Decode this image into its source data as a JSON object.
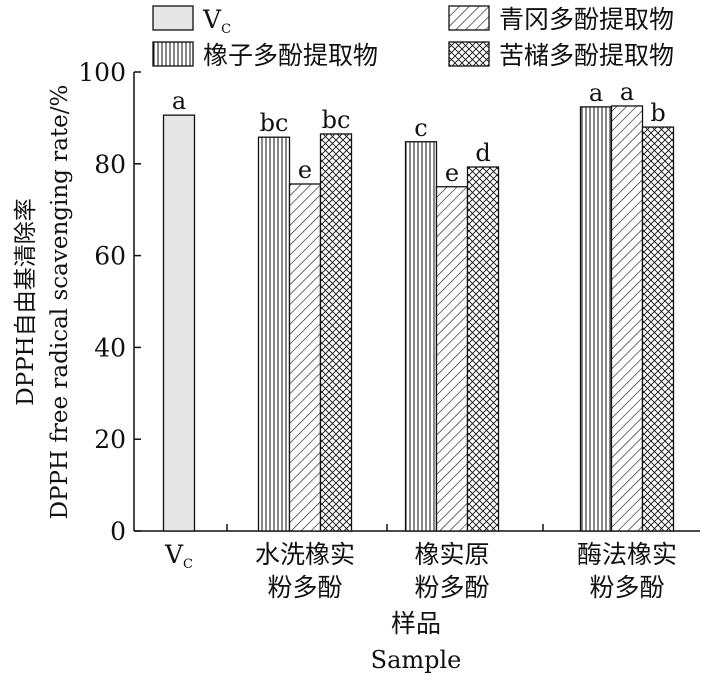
{
  "chart_data": {
    "type": "bar",
    "xlabel_cn": "样品",
    "xlabel_en": "Sample",
    "ylabel_cn": "DPPH自由基清除率",
    "ylabel_en": "DPPH free radical scavenging rate/%",
    "ylim": [
      0,
      100
    ],
    "yticks": [
      "0",
      "20",
      "40",
      "60",
      "80",
      "100"
    ],
    "legend_position": "top",
    "groups": [
      {
        "label_line1": "V",
        "label_sub": "C",
        "label_line2": "",
        "bars": [
          {
            "series": "vc",
            "value": 90.6,
            "letter": "a"
          }
        ]
      },
      {
        "label_line1": "水洗橡实",
        "label_sub": "",
        "label_line2": "粉多酚",
        "bars": [
          {
            "series": "xz",
            "value": 85.8,
            "letter": "bc"
          },
          {
            "series": "qg",
            "value": 75.6,
            "letter": "e"
          },
          {
            "series": "kz",
            "value": 86.5,
            "letter": "bc"
          }
        ]
      },
      {
        "label_line1": "橡实原",
        "label_sub": "",
        "label_line2": "粉多酚",
        "bars": [
          {
            "series": "xz",
            "value": 84.8,
            "letter": "c"
          },
          {
            "series": "qg",
            "value": 75.0,
            "letter": "e"
          },
          {
            "series": "kz",
            "value": 79.3,
            "letter": "d"
          }
        ]
      },
      {
        "label_line1": "酶法橡实",
        "label_sub": "",
        "label_line2": "粉多酚",
        "bars": [
          {
            "series": "xz",
            "value": 92.4,
            "letter": "a"
          },
          {
            "series": "qg",
            "value": 92.6,
            "letter": "a"
          },
          {
            "series": "kz",
            "value": 88.0,
            "letter": "b"
          }
        ]
      }
    ],
    "series": [
      {
        "id": "vc",
        "name": "V",
        "name_sub": "C",
        "fill": "solid-lightgray"
      },
      {
        "id": "xz",
        "name": "橡子多酚提取物",
        "fill": "vertical-lines"
      },
      {
        "id": "qg",
        "name": "青冈多酚提取物",
        "fill": "diagonal-lines"
      },
      {
        "id": "kz",
        "name": "苦槠多酚提取物",
        "fill": "crosshatch"
      }
    ],
    "colors": {
      "solid": "#e6e6e6",
      "stroke": "#111111"
    }
  }
}
